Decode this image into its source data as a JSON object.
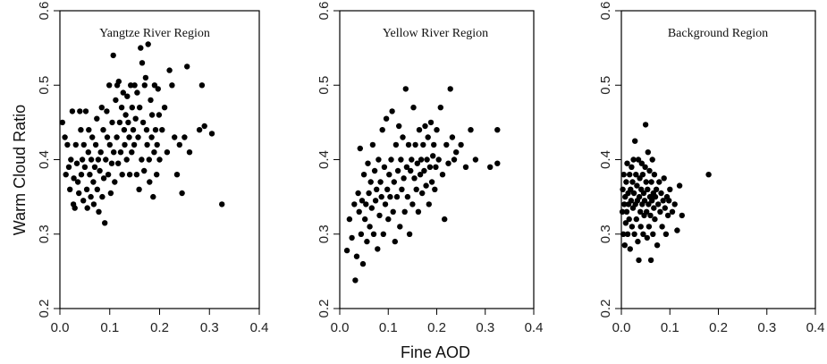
{
  "figure": {
    "ylabel": "Warm Cloud Ratio",
    "xlabel": "Fine AOD"
  },
  "chart_data": [
    {
      "type": "scatter",
      "title": "Yangtze River Region",
      "xlim": [
        0.0,
        0.4
      ],
      "ylim": [
        0.2,
        0.6
      ],
      "xticks": [
        "0.0",
        "0.1",
        "0.2",
        "0.3",
        "0.4"
      ],
      "yticks": [
        "0.2",
        "0.3",
        "0.4",
        "0.5",
        "0.6"
      ],
      "marker_color": "#000000",
      "points": [
        [
          0.005,
          0.45
        ],
        [
          0.01,
          0.43
        ],
        [
          0.012,
          0.38
        ],
        [
          0.015,
          0.42
        ],
        [
          0.018,
          0.39
        ],
        [
          0.02,
          0.36
        ],
        [
          0.022,
          0.4
        ],
        [
          0.025,
          0.465
        ],
        [
          0.027,
          0.34
        ],
        [
          0.028,
          0.375
        ],
        [
          0.03,
          0.335
        ],
        [
          0.032,
          0.42
        ],
        [
          0.034,
          0.395
        ],
        [
          0.036,
          0.37
        ],
        [
          0.038,
          0.355
        ],
        [
          0.04,
          0.465
        ],
        [
          0.042,
          0.44
        ],
        [
          0.043,
          0.38
        ],
        [
          0.045,
          0.4
        ],
        [
          0.047,
          0.345
        ],
        [
          0.048,
          0.42
        ],
        [
          0.05,
          0.39
        ],
        [
          0.052,
          0.465
        ],
        [
          0.054,
          0.36
        ],
        [
          0.055,
          0.335
        ],
        [
          0.057,
          0.41
        ],
        [
          0.058,
          0.44
        ],
        [
          0.06,
          0.38
        ],
        [
          0.062,
          0.35
        ],
        [
          0.063,
          0.4
        ],
        [
          0.065,
          0.43
        ],
        [
          0.067,
          0.37
        ],
        [
          0.068,
          0.34
        ],
        [
          0.07,
          0.39
        ],
        [
          0.072,
          0.42
        ],
        [
          0.074,
          0.455
        ],
        [
          0.075,
          0.36
        ],
        [
          0.077,
          0.4
        ],
        [
          0.078,
          0.33
        ],
        [
          0.08,
          0.385
        ],
        [
          0.082,
          0.41
        ],
        [
          0.084,
          0.47
        ],
        [
          0.085,
          0.35
        ],
        [
          0.087,
          0.44
        ],
        [
          0.088,
          0.375
        ],
        [
          0.09,
          0.315
        ],
        [
          0.092,
          0.4
        ],
        [
          0.094,
          0.465
        ],
        [
          0.095,
          0.43
        ],
        [
          0.097,
          0.38
        ],
        [
          0.099,
          0.5
        ],
        [
          0.1,
          0.42
        ],
        [
          0.102,
          0.355
        ],
        [
          0.104,
          0.395
        ],
        [
          0.105,
          0.45
        ],
        [
          0.107,
          0.54
        ],
        [
          0.108,
          0.41
        ],
        [
          0.11,
          0.37
        ],
        [
          0.112,
          0.48
        ],
        [
          0.114,
          0.43
        ],
        [
          0.115,
          0.5
        ],
        [
          0.117,
          0.395
        ],
        [
          0.118,
          0.505
        ],
        [
          0.12,
          0.45
        ],
        [
          0.122,
          0.41
        ],
        [
          0.124,
          0.47
        ],
        [
          0.125,
          0.38
        ],
        [
          0.127,
          0.49
        ],
        [
          0.129,
          0.44
        ],
        [
          0.13,
          0.42
        ],
        [
          0.132,
          0.46
        ],
        [
          0.134,
          0.4
        ],
        [
          0.135,
          0.485
        ],
        [
          0.137,
          0.45
        ],
        [
          0.139,
          0.43
        ],
        [
          0.14,
          0.38
        ],
        [
          0.142,
          0.5
        ],
        [
          0.144,
          0.41
        ],
        [
          0.145,
          0.47
        ],
        [
          0.147,
          0.44
        ],
        [
          0.149,
          0.42
        ],
        [
          0.15,
          0.5
        ],
        [
          0.152,
          0.455
        ],
        [
          0.154,
          0.38
        ],
        [
          0.155,
          0.49
        ],
        [
          0.157,
          0.43
        ],
        [
          0.159,
          0.36
        ],
        [
          0.16,
          0.47
        ],
        [
          0.162,
          0.55
        ],
        [
          0.164,
          0.4
        ],
        [
          0.165,
          0.53
        ],
        [
          0.167,
          0.45
        ],
        [
          0.169,
          0.385
        ],
        [
          0.17,
          0.5
        ],
        [
          0.172,
          0.51
        ],
        [
          0.174,
          0.44
        ],
        [
          0.175,
          0.42
        ],
        [
          0.177,
          0.555
        ],
        [
          0.179,
          0.4
        ],
        [
          0.18,
          0.37
        ],
        [
          0.182,
          0.48
        ],
        [
          0.184,
          0.43
        ],
        [
          0.185,
          0.46
        ],
        [
          0.187,
          0.35
        ],
        [
          0.189,
          0.41
        ],
        [
          0.19,
          0.5
        ],
        [
          0.192,
          0.44
        ],
        [
          0.194,
          0.38
        ],
        [
          0.195,
          0.42
        ],
        [
          0.197,
          0.495
        ],
        [
          0.199,
          0.46
        ],
        [
          0.2,
          0.4
        ],
        [
          0.205,
          0.44
        ],
        [
          0.21,
          0.47
        ],
        [
          0.215,
          0.41
        ],
        [
          0.22,
          0.52
        ],
        [
          0.225,
          0.5
        ],
        [
          0.23,
          0.43
        ],
        [
          0.235,
          0.38
        ],
        [
          0.24,
          0.42
        ],
        [
          0.245,
          0.355
        ],
        [
          0.25,
          0.43
        ],
        [
          0.255,
          0.525
        ],
        [
          0.26,
          0.41
        ],
        [
          0.28,
          0.44
        ],
        [
          0.285,
          0.5
        ],
        [
          0.29,
          0.445
        ],
        [
          0.305,
          0.435
        ],
        [
          0.325,
          0.34
        ]
      ]
    },
    {
      "type": "scatter",
      "title": "Yellow River Region",
      "xlim": [
        0.0,
        0.4
      ],
      "ylim": [
        0.2,
        0.6
      ],
      "xticks": [
        "0.0",
        "0.1",
        "0.2",
        "0.3",
        "0.4"
      ],
      "yticks": [
        "0.2",
        "0.3",
        "0.4",
        "0.5",
        "0.6"
      ],
      "marker_color": "#000000",
      "points": [
        [
          0.015,
          0.278
        ],
        [
          0.02,
          0.32
        ],
        [
          0.025,
          0.295
        ],
        [
          0.03,
          0.34
        ],
        [
          0.032,
          0.238
        ],
        [
          0.035,
          0.27
        ],
        [
          0.038,
          0.355
        ],
        [
          0.04,
          0.33
        ],
        [
          0.042,
          0.415
        ],
        [
          0.044,
          0.3
        ],
        [
          0.046,
          0.345
        ],
        [
          0.048,
          0.26
        ],
        [
          0.05,
          0.38
        ],
        [
          0.052,
          0.32
        ],
        [
          0.054,
          0.34
        ],
        [
          0.056,
          0.29
        ],
        [
          0.058,
          0.395
        ],
        [
          0.06,
          0.355
        ],
        [
          0.062,
          0.31
        ],
        [
          0.064,
          0.37
        ],
        [
          0.066,
          0.335
        ],
        [
          0.068,
          0.42
        ],
        [
          0.07,
          0.3
        ],
        [
          0.072,
          0.385
        ],
        [
          0.074,
          0.345
        ],
        [
          0.076,
          0.36
        ],
        [
          0.078,
          0.28
        ],
        [
          0.08,
          0.4
        ],
        [
          0.082,
          0.325
        ],
        [
          0.084,
          0.37
        ],
        [
          0.086,
          0.35
        ],
        [
          0.088,
          0.44
        ],
        [
          0.09,
          0.3
        ],
        [
          0.092,
          0.39
        ],
        [
          0.094,
          0.34
        ],
        [
          0.096,
          0.455
        ],
        [
          0.098,
          0.36
        ],
        [
          0.1,
          0.32
        ],
        [
          0.102,
          0.38
        ],
        [
          0.104,
          0.35
        ],
        [
          0.106,
          0.4
        ],
        [
          0.108,
          0.465
        ],
        [
          0.11,
          0.33
        ],
        [
          0.112,
          0.37
        ],
        [
          0.114,
          0.29
        ],
        [
          0.116,
          0.42
        ],
        [
          0.118,
          0.35
        ],
        [
          0.12,
          0.385
        ],
        [
          0.122,
          0.445
        ],
        [
          0.124,
          0.31
        ],
        [
          0.126,
          0.4
        ],
        [
          0.128,
          0.36
        ],
        [
          0.13,
          0.43
        ],
        [
          0.132,
          0.375
        ],
        [
          0.134,
          0.33
        ],
        [
          0.136,
          0.495
        ],
        [
          0.138,
          0.39
        ],
        [
          0.14,
          0.35
        ],
        [
          0.142,
          0.42
        ],
        [
          0.144,
          0.3
        ],
        [
          0.146,
          0.385
        ],
        [
          0.148,
          0.4
        ],
        [
          0.15,
          0.34
        ],
        [
          0.152,
          0.47
        ],
        [
          0.154,
          0.375
        ],
        [
          0.156,
          0.42
        ],
        [
          0.158,
          0.36
        ],
        [
          0.16,
          0.395
        ],
        [
          0.162,
          0.33
        ],
        [
          0.164,
          0.44
        ],
        [
          0.166,
          0.38
        ],
        [
          0.168,
          0.4
        ],
        [
          0.17,
          0.355
        ],
        [
          0.172,
          0.42
        ],
        [
          0.174,
          0.385
        ],
        [
          0.176,
          0.445
        ],
        [
          0.178,
          0.365
        ],
        [
          0.18,
          0.4
        ],
        [
          0.182,
          0.43
        ],
        [
          0.184,
          0.34
        ],
        [
          0.186,
          0.39
        ],
        [
          0.188,
          0.45
        ],
        [
          0.19,
          0.37
        ],
        [
          0.192,
          0.405
        ],
        [
          0.194,
          0.42
        ],
        [
          0.196,
          0.36
        ],
        [
          0.198,
          0.39
        ],
        [
          0.2,
          0.44
        ],
        [
          0.204,
          0.4
        ],
        [
          0.208,
          0.47
        ],
        [
          0.212,
          0.38
        ],
        [
          0.216,
          0.32
        ],
        [
          0.22,
          0.42
        ],
        [
          0.224,
          0.395
        ],
        [
          0.228,
          0.495
        ],
        [
          0.232,
          0.43
        ],
        [
          0.236,
          0.4
        ],
        [
          0.24,
          0.41
        ],
        [
          0.25,
          0.42
        ],
        [
          0.26,
          0.39
        ],
        [
          0.27,
          0.44
        ],
        [
          0.28,
          0.4
        ],
        [
          0.31,
          0.39
        ],
        [
          0.325,
          0.395
        ],
        [
          0.325,
          0.44
        ]
      ]
    },
    {
      "type": "scatter",
      "title": "Background Region",
      "xlim": [
        0.0,
        0.4
      ],
      "ylim": [
        0.2,
        0.6
      ],
      "xticks": [
        "0.0",
        "0.1",
        "0.2",
        "0.3",
        "0.4"
      ],
      "yticks": [
        "0.2",
        "0.3",
        "0.4",
        "0.5",
        "0.6"
      ],
      "marker_color": "#000000",
      "points": [
        [
          0.002,
          0.33
        ],
        [
          0.003,
          0.36
        ],
        [
          0.004,
          0.3
        ],
        [
          0.005,
          0.38
        ],
        [
          0.006,
          0.34
        ],
        [
          0.007,
          0.285
        ],
        [
          0.008,
          0.35
        ],
        [
          0.009,
          0.315
        ],
        [
          0.01,
          0.37
        ],
        [
          0.011,
          0.33
        ],
        [
          0.012,
          0.395
        ],
        [
          0.013,
          0.3
        ],
        [
          0.014,
          0.355
        ],
        [
          0.015,
          0.34
        ],
        [
          0.016,
          0.32
        ],
        [
          0.017,
          0.38
        ],
        [
          0.018,
          0.28
        ],
        [
          0.019,
          0.36
        ],
        [
          0.02,
          0.345
        ],
        [
          0.021,
          0.39
        ],
        [
          0.022,
          0.31
        ],
        [
          0.023,
          0.37
        ],
        [
          0.024,
          0.335
        ],
        [
          0.025,
          0.4
        ],
        [
          0.026,
          0.355
        ],
        [
          0.027,
          0.3
        ],
        [
          0.028,
          0.425
        ],
        [
          0.029,
          0.34
        ],
        [
          0.03,
          0.38
        ],
        [
          0.031,
          0.32
        ],
        [
          0.032,
          0.365
        ],
        [
          0.033,
          0.345
        ],
        [
          0.034,
          0.29
        ],
        [
          0.035,
          0.4
        ],
        [
          0.036,
          0.265
        ],
        [
          0.037,
          0.35
        ],
        [
          0.038,
          0.375
        ],
        [
          0.039,
          0.33
        ],
        [
          0.04,
          0.31
        ],
        [
          0.041,
          0.36
        ],
        [
          0.042,
          0.395
        ],
        [
          0.043,
          0.34
        ],
        [
          0.044,
          0.38
        ],
        [
          0.045,
          0.3
        ],
        [
          0.046,
          0.355
        ],
        [
          0.047,
          0.325
        ],
        [
          0.048,
          0.345
        ],
        [
          0.049,
          0.39
        ],
        [
          0.05,
          0.447
        ],
        [
          0.051,
          0.37
        ],
        [
          0.052,
          0.33
        ],
        [
          0.053,
          0.295
        ],
        [
          0.054,
          0.36
        ],
        [
          0.055,
          0.41
        ],
        [
          0.056,
          0.34
        ],
        [
          0.057,
          0.31
        ],
        [
          0.058,
          0.385
        ],
        [
          0.059,
          0.35
        ],
        [
          0.06,
          0.325
        ],
        [
          0.061,
          0.265
        ],
        [
          0.062,
          0.37
        ],
        [
          0.063,
          0.345
        ],
        [
          0.064,
          0.4
        ],
        [
          0.065,
          0.3
        ],
        [
          0.066,
          0.355
        ],
        [
          0.067,
          0.335
        ],
        [
          0.068,
          0.38
        ],
        [
          0.069,
          0.32
        ],
        [
          0.07,
          0.35
        ],
        [
          0.072,
          0.36
        ],
        [
          0.074,
          0.285
        ],
        [
          0.076,
          0.34
        ],
        [
          0.078,
          0.37
        ],
        [
          0.08,
          0.33
        ],
        [
          0.082,
          0.355
        ],
        [
          0.084,
          0.31
        ],
        [
          0.086,
          0.345
        ],
        [
          0.088,
          0.375
        ],
        [
          0.09,
          0.335
        ],
        [
          0.092,
          0.3
        ],
        [
          0.094,
          0.35
        ],
        [
          0.096,
          0.325
        ],
        [
          0.098,
          0.345
        ],
        [
          0.1,
          0.36
        ],
        [
          0.105,
          0.33
        ],
        [
          0.11,
          0.34
        ],
        [
          0.115,
          0.305
        ],
        [
          0.12,
          0.365
        ],
        [
          0.125,
          0.325
        ],
        [
          0.18,
          0.38
        ]
      ]
    }
  ]
}
